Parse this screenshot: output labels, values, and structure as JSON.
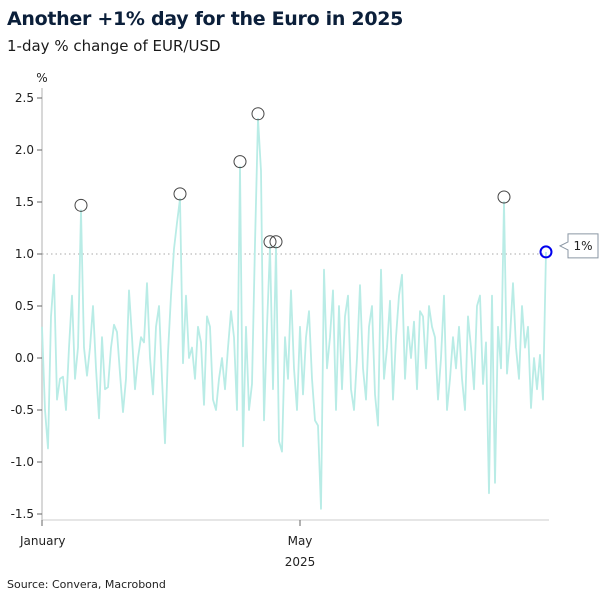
{
  "title": "Another +1% day for the Euro in 2025",
  "subtitle": "1-day % change of EUR/USD",
  "source": "Source: Convera, Macrobond",
  "colors": {
    "line": "#b9ece6",
    "marker": "#444444",
    "highlight": "#0000ee",
    "reference": "#aaaaaa"
  },
  "chart_data": {
    "type": "line",
    "title": "Another +1% day for the Euro in 2025",
    "ylabel": "%",
    "xlabel": "2025",
    "ylim": [
      -1.5,
      2.5
    ],
    "yticks": [
      "2.5",
      "2.0",
      "1.5",
      "1.0",
      "0.5",
      "0.0",
      "-0.5",
      "-1.0",
      "-1.5"
    ],
    "xticks": [
      {
        "label": "January",
        "index": 0
      },
      {
        "label": "May",
        "index": 86
      }
    ],
    "x_year_label": "2025",
    "reference_line": 1.0,
    "callout": {
      "index": 168,
      "label": "1%"
    },
    "circled_indices": [
      13,
      46,
      66,
      72,
      76,
      78,
      154
    ],
    "highlight_index": 168,
    "values": [
      0.3,
      -0.5,
      -0.87,
      0.4,
      0.8,
      -0.4,
      -0.2,
      -0.18,
      -0.5,
      0.1,
      0.6,
      -0.2,
      0.1,
      1.42,
      0.1,
      -0.17,
      0.1,
      0.5,
      -0.1,
      -0.58,
      0.2,
      -0.3,
      -0.28,
      0.1,
      0.32,
      0.25,
      -0.15,
      -0.52,
      -0.2,
      0.65,
      0.2,
      -0.3,
      0.0,
      0.2,
      0.15,
      0.72,
      0.0,
      -0.35,
      0.3,
      0.5,
      -0.2,
      -0.82,
      0.05,
      0.6,
      1.05,
      1.3,
      1.53,
      -0.05,
      0.6,
      0.0,
      0.1,
      -0.2,
      0.3,
      0.15,
      -0.45,
      0.4,
      0.3,
      -0.4,
      -0.5,
      -0.2,
      0.0,
      -0.3,
      0.1,
      0.45,
      0.2,
      -0.5,
      1.84,
      -0.85,
      0.3,
      -0.5,
      -0.25,
      1.1,
      2.3,
      1.8,
      -0.6,
      0.3,
      1.07,
      -0.3,
      1.07,
      -0.8,
      -0.9,
      0.2,
      -0.2,
      0.65,
      -0.1,
      -0.5,
      0.3,
      -0.35,
      0.2,
      0.45,
      -0.2,
      -0.6,
      -0.65,
      -1.45,
      0.85,
      -0.1,
      0.2,
      0.65,
      -0.5,
      0.5,
      -0.3,
      0.4,
      0.6,
      -0.3,
      -0.5,
      0.0,
      0.7,
      -0.1,
      -0.4,
      0.3,
      0.5,
      -0.35,
      -0.65,
      0.85,
      -0.2,
      0.1,
      0.55,
      -0.4,
      0.2,
      0.6,
      0.8,
      -0.2,
      0.3,
      0.0,
      0.35,
      -0.3,
      0.45,
      0.4,
      -0.1,
      0.5,
      0.3,
      0.2,
      -0.4,
      0.0,
      0.6,
      -0.5,
      -0.2,
      0.2,
      -0.1,
      0.3,
      -0.2,
      -0.5,
      0.4,
      0.1,
      -0.3,
      0.5,
      0.6,
      -0.25,
      0.15,
      -1.3,
      0.6,
      -1.2,
      0.3,
      -0.1,
      1.5,
      -0.15,
      0.2,
      0.72,
      0.1,
      -0.2,
      0.5,
      0.1,
      0.3,
      -0.48,
      0.0,
      -0.3,
      0.03,
      -0.4,
      1.02
    ]
  }
}
